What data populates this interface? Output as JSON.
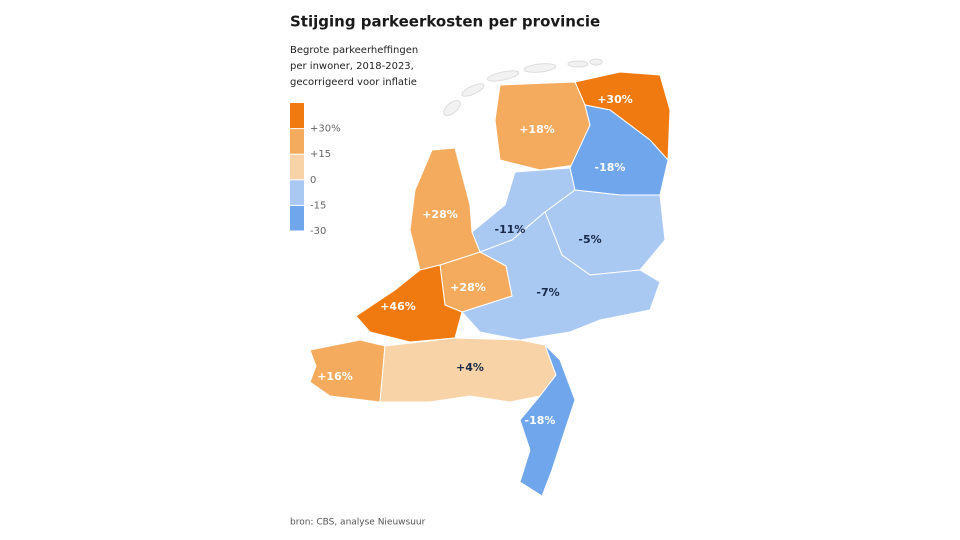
{
  "title": "Stijging parkeerkosten per provincie",
  "subtitle": [
    "Begrote parkeerheffingen",
    "per inwoner, 2018-2023,",
    "gecorrigeerd voor inflatie"
  ],
  "legend": {
    "range": [
      -30,
      45
    ],
    "colors": [
      "#6fa6ec",
      "#a9c8f2",
      "#f8d3a8",
      "#f5ab5e",
      "#f07a10"
    ],
    "ticks": [
      {
        "value": 30,
        "label": "+30%"
      },
      {
        "value": 15,
        "label": "+15"
      },
      0,
      -15,
      -30
    ]
  },
  "regions": [
    {
      "value": 30,
      "label": "+30%",
      "color": "#f07a10",
      "label_color": "#ffffff"
    },
    {
      "value": 18,
      "label": "+18%",
      "color": "#f5ab5e",
      "label_color": "#ffffff"
    },
    {
      "value": -18,
      "label": "-18%",
      "color": "#6fa6ec",
      "label_color": "#ffffff"
    },
    {
      "value": -11,
      "label": "-11%",
      "color": "#a9c8f2",
      "label_color": "#1a2a4a"
    },
    {
      "value": -5,
      "label": "-5%",
      "color": "#a9c8f2",
      "label_color": "#1a2a4a"
    },
    {
      "value": -7,
      "label": "-7%",
      "color": "#a9c8f2",
      "label_color": "#1a2a4a"
    },
    {
      "value": 28,
      "label": "+28%",
      "color": "#f5ab5e",
      "label_color": "#ffffff"
    },
    {
      "value": 28,
      "label": "+28%",
      "color": "#f5ab5e",
      "label_color": "#ffffff"
    },
    {
      "value": 46,
      "label": "+46%",
      "color": "#f07a10",
      "label_color": "#ffffff"
    },
    {
      "value": 16,
      "label": "+16%",
      "color": "#f5ab5e",
      "label_color": "#ffffff"
    },
    {
      "value": 4,
      "label": "+4%",
      "color": "#f8d3a8",
      "label_color": "#1a2a4a"
    },
    {
      "value": -18,
      "label": "-18%",
      "color": "#6fa6ec",
      "label_color": "#ffffff"
    }
  ],
  "source": "bron: CBS, analyse Nieuwsuur"
}
